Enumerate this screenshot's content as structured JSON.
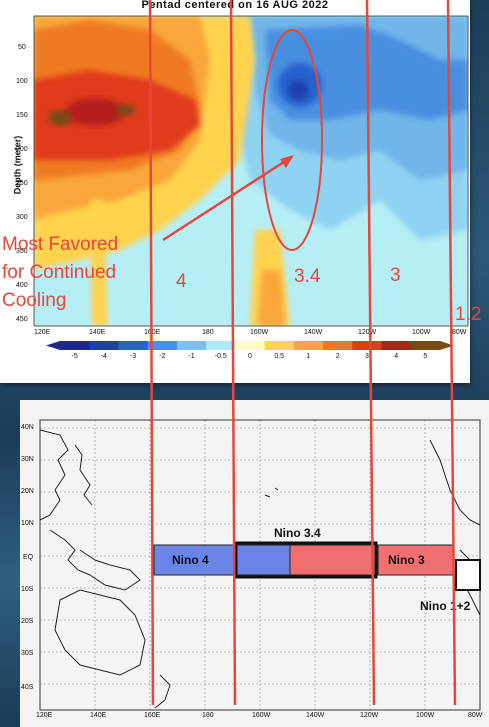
{
  "plot": {
    "title": "Pentad centered on 16 AUG 2022",
    "ylabel": "Depth (meter)",
    "y_ticks": [
      "50",
      "100",
      "150",
      "200",
      "250",
      "300",
      "350",
      "400",
      "450"
    ],
    "x_ticks": [
      "120E",
      "140E",
      "160E",
      "180",
      "160W",
      "140W",
      "120W",
      "100W",
      "80W"
    ]
  },
  "colorbar": {
    "labels": [
      "-5",
      "-4",
      "-3",
      "-2",
      "-1",
      "-0.5",
      "0",
      "0.5",
      "1",
      "2",
      "3",
      "4",
      "5"
    ],
    "colors": [
      "#1c2a80",
      "#1e3fae",
      "#2762cc",
      "#4a8fe0",
      "#7fc0f0",
      "#aeeaf5",
      "#fffcd0",
      "#ffd34d",
      "#f9a63a",
      "#f07a23",
      "#e03a1f",
      "#b51f1a",
      "#7a4a14"
    ]
  },
  "annotation": {
    "line1": "Most Favored",
    "line2": "for Continued",
    "line3": "Cooling",
    "color": "#e8463a"
  },
  "region_numbers": {
    "n4": "4",
    "n34": "3.4",
    "n3": "3",
    "n12": "1.2"
  },
  "map": {
    "lat_ticks": [
      "40N",
      "30N",
      "20N",
      "10N",
      "EQ",
      "10S",
      "20S",
      "30S",
      "40S"
    ],
    "lon_ticks": [
      "120E",
      "140E",
      "160E",
      "180",
      "160W",
      "140W",
      "120W",
      "100W",
      "80W"
    ],
    "nino4": "Nino 4",
    "nino34": "Nino 3.4",
    "nino3": "Nino 3",
    "nino12": "Nino 1+2",
    "nino4_color": "#6a85e8",
    "nino3_color": "#f07070"
  }
}
